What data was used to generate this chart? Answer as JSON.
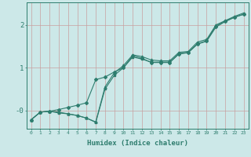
{
  "title": "",
  "xlabel": "Humidex (Indice chaleur)",
  "ylabel": "",
  "x_ticks": [
    0,
    1,
    2,
    3,
    4,
    5,
    6,
    7,
    8,
    9,
    10,
    11,
    12,
    13,
    14,
    15,
    16,
    17,
    18,
    19,
    20,
    21,
    22,
    23
  ],
  "xlim": [
    -0.5,
    23.5
  ],
  "ylim": [
    -0.42,
    2.52
  ],
  "bg_color": "#cce8e8",
  "grid_color": "#b0d0d0",
  "line_color": "#2e7d6e",
  "line1_y": [
    -0.22,
    -0.04,
    -0.02,
    0.02,
    0.07,
    0.12,
    0.18,
    0.72,
    0.78,
    0.9,
    1.0,
    1.28,
    1.22,
    1.12,
    1.12,
    1.12,
    1.32,
    1.35,
    1.55,
    1.62,
    1.95,
    2.08,
    2.18,
    2.25
  ],
  "line2_y": [
    -0.22,
    -0.04,
    -0.02,
    -0.04,
    -0.08,
    -0.12,
    -0.18,
    -0.27,
    0.55,
    0.88,
    1.05,
    1.3,
    1.26,
    1.18,
    1.16,
    1.16,
    1.36,
    1.38,
    1.6,
    1.66,
    2.0,
    2.1,
    2.2,
    2.28
  ],
  "line3_y": [
    -0.22,
    -0.04,
    -0.02,
    -0.06,
    -0.08,
    -0.12,
    -0.18,
    -0.28,
    0.5,
    0.82,
    1.0,
    1.25,
    1.2,
    1.13,
    1.13,
    1.13,
    1.33,
    1.36,
    1.56,
    1.63,
    1.98,
    2.08,
    2.18,
    2.25
  ]
}
